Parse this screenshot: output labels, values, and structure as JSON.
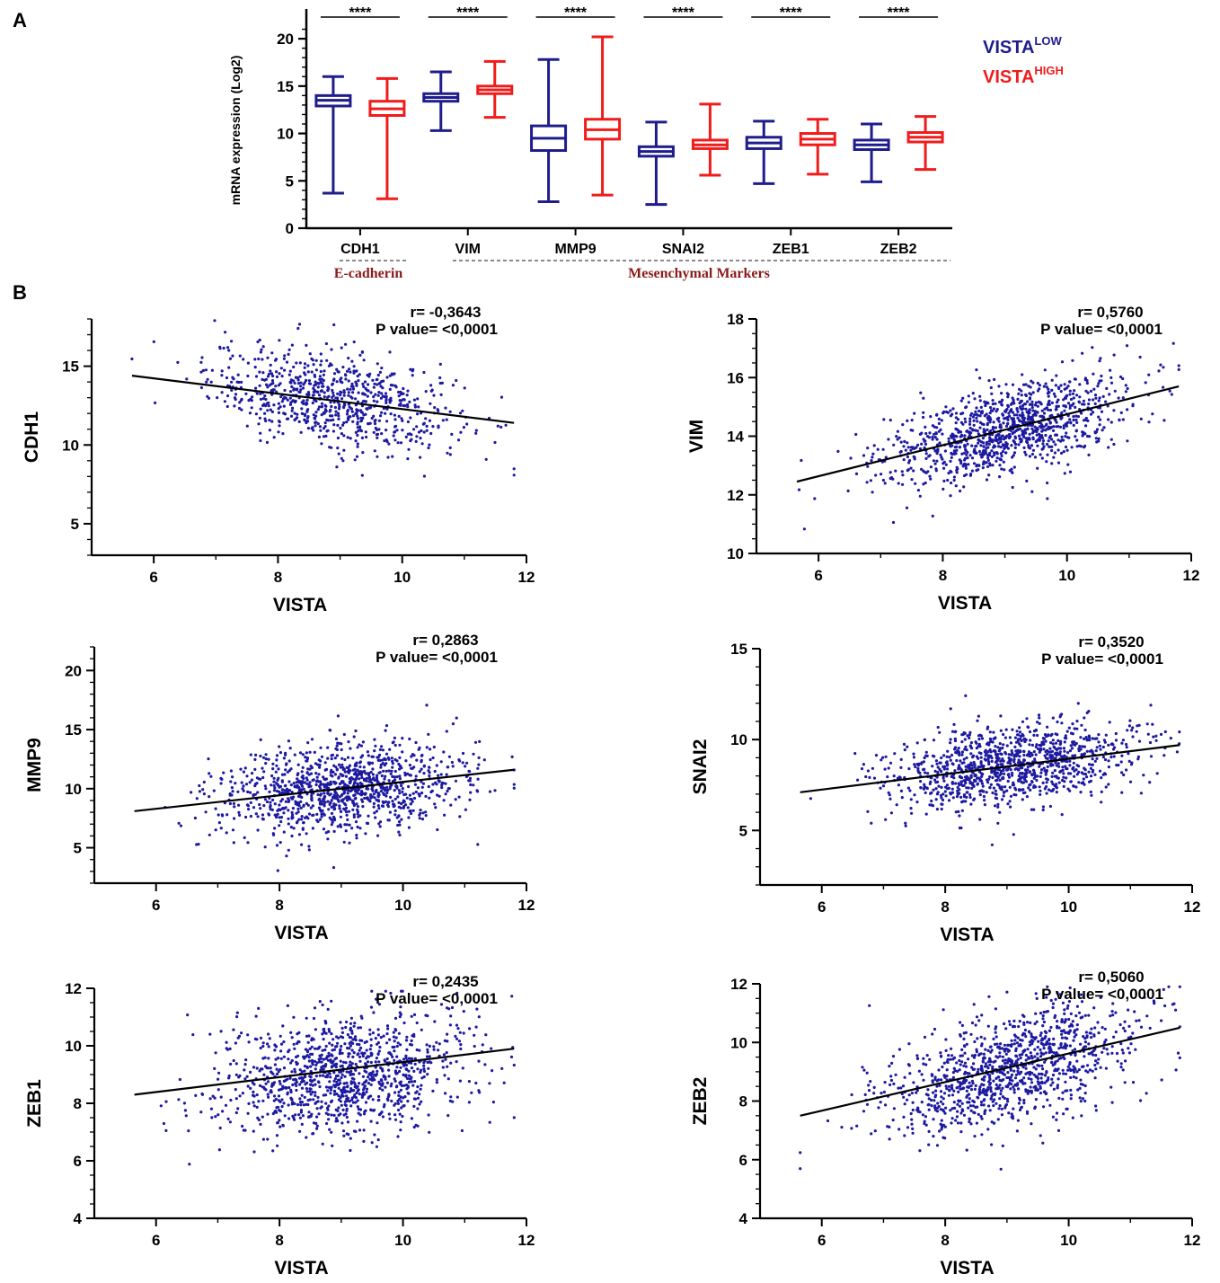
{
  "panel_labels": {
    "a": "A",
    "b": "B"
  },
  "colors": {
    "low": "#1f1d8c",
    "high": "#f01c1c",
    "dot": "#1d1aa0",
    "line": "#000000",
    "group_label": "#8b1a1a"
  },
  "legend": {
    "low_main": "VISTA",
    "low_sup": "LOW",
    "high_main": "VISTA",
    "high_sup": "HIGH"
  },
  "groups": {
    "ecadherin": "E-cadherin",
    "mesenchymal": "Mesenchymal Markers"
  },
  "chart_data": [
    {
      "id": "boxplot",
      "type": "box",
      "ylabel": "mRNA expression (Log2)",
      "ylim": [
        0,
        22
      ],
      "yticks": [
        0,
        5,
        10,
        15,
        20
      ],
      "categories": [
        "CDH1",
        "VIM",
        "MMP9",
        "SNAI2",
        "ZEB1",
        "ZEB2"
      ],
      "significance": [
        "****",
        "****",
        "****",
        "****",
        "****",
        "****"
      ],
      "series": [
        {
          "name": "VISTA LOW",
          "boxes": [
            {
              "min": 3.7,
              "q1": 12.9,
              "median": 13.5,
              "q3": 14.0,
              "max": 16.0
            },
            {
              "min": 10.3,
              "q1": 13.4,
              "median": 13.8,
              "q3": 14.2,
              "max": 16.5
            },
            {
              "min": 2.8,
              "q1": 8.2,
              "median": 9.5,
              "q3": 10.8,
              "max": 17.8
            },
            {
              "min": 2.5,
              "q1": 7.6,
              "median": 8.1,
              "q3": 8.6,
              "max": 11.2
            },
            {
              "min": 4.7,
              "q1": 8.4,
              "median": 9.0,
              "q3": 9.6,
              "max": 11.3
            },
            {
              "min": 4.9,
              "q1": 8.3,
              "median": 8.8,
              "q3": 9.3,
              "max": 11.0
            }
          ]
        },
        {
          "name": "VISTA HIGH",
          "boxes": [
            {
              "min": 3.1,
              "q1": 11.9,
              "median": 12.6,
              "q3": 13.4,
              "max": 15.8
            },
            {
              "min": 11.7,
              "q1": 14.2,
              "median": 14.6,
              "q3": 15.0,
              "max": 17.6
            },
            {
              "min": 3.5,
              "q1": 9.4,
              "median": 10.4,
              "q3": 11.5,
              "max": 20.2
            },
            {
              "min": 5.6,
              "q1": 8.4,
              "median": 8.8,
              "q3": 9.3,
              "max": 13.1
            },
            {
              "min": 5.7,
              "q1": 8.8,
              "median": 9.4,
              "q3": 10.0,
              "max": 11.5
            },
            {
              "min": 6.2,
              "q1": 9.1,
              "median": 9.6,
              "q3": 10.1,
              "max": 11.8
            }
          ]
        }
      ]
    },
    {
      "id": "cdh1",
      "type": "scatter",
      "xlabel": "VISTA",
      "ylabel": "CDH1",
      "xlim": [
        5,
        12
      ],
      "xticks": [
        6,
        8,
        10,
        12
      ],
      "ylim": [
        3,
        18
      ],
      "yticks": [
        5,
        10,
        15
      ],
      "r": "r= -0,3643",
      "p": "P value= <0,0001",
      "fit": {
        "x0": 5.65,
        "y0": 14.4,
        "x1": 11.8,
        "y1": 11.4
      },
      "cloud": {
        "n": 780,
        "xmean": 8.9,
        "xsd": 1.0,
        "ymean": 12.9,
        "ysd": 1.6,
        "rho": -0.36
      }
    },
    {
      "id": "vim",
      "type": "scatter",
      "xlabel": "VISTA",
      "ylabel": "VIM",
      "xlim": [
        5,
        12
      ],
      "xticks": [
        6,
        8,
        10,
        12
      ],
      "ylim": [
        10,
        18
      ],
      "yticks": [
        10,
        12,
        14,
        16,
        18
      ],
      "r": "r= 0,5760",
      "p": "P value= <0,0001",
      "fit": {
        "x0": 5.65,
        "y0": 12.45,
        "x1": 11.8,
        "y1": 15.7
      },
      "cloud": {
        "n": 1100,
        "xmean": 9.0,
        "xsd": 1.0,
        "ymean": 14.2,
        "ysd": 0.9,
        "rho": 0.58
      }
    },
    {
      "id": "mmp9",
      "type": "scatter",
      "xlabel": "VISTA",
      "ylabel": "MMP9",
      "xlim": [
        5,
        12
      ],
      "xticks": [
        6,
        8,
        10,
        12
      ],
      "ylim": [
        2,
        22
      ],
      "yticks": [
        5,
        10,
        15,
        20
      ],
      "r": "r= 0,2863",
      "p": "P value= <0,0001",
      "fit": {
        "x0": 5.65,
        "y0": 8.1,
        "x1": 11.8,
        "y1": 11.6
      },
      "cloud": {
        "n": 1100,
        "xmean": 9.0,
        "xsd": 1.0,
        "ymean": 10.0,
        "ysd": 2.0,
        "rho": 0.29
      }
    },
    {
      "id": "snai2",
      "type": "scatter",
      "xlabel": "VISTA",
      "ylabel": "SNAI2",
      "xlim": [
        5,
        12
      ],
      "xticks": [
        6,
        8,
        10,
        12
      ],
      "ylim": [
        2,
        15
      ],
      "yticks": [
        5,
        10,
        15
      ],
      "r": "r= 0,3520",
      "p": "P value= <0,0001",
      "fit": {
        "x0": 5.65,
        "y0": 7.1,
        "x1": 11.8,
        "y1": 9.7
      },
      "cloud": {
        "n": 1100,
        "xmean": 9.0,
        "xsd": 1.0,
        "ymean": 8.5,
        "ysd": 1.2,
        "rho": 0.35
      }
    },
    {
      "id": "zeb1",
      "type": "scatter",
      "xlabel": "VISTA",
      "ylabel": "ZEB1",
      "xlim": [
        5,
        12
      ],
      "xticks": [
        6,
        8,
        10,
        12
      ],
      "ylim": [
        4,
        12
      ],
      "yticks": [
        4,
        6,
        8,
        10,
        12
      ],
      "r": "r= 0,2435",
      "p": "P value= <0,0001",
      "fit": {
        "x0": 5.65,
        "y0": 8.3,
        "x1": 11.8,
        "y1": 9.9
      },
      "cloud": {
        "n": 1100,
        "xmean": 9.0,
        "xsd": 1.0,
        "ymean": 9.0,
        "ysd": 1.1,
        "rho": 0.24
      }
    },
    {
      "id": "zeb2",
      "type": "scatter",
      "xlabel": "VISTA",
      "ylabel": "ZEB2",
      "xlim": [
        5,
        12
      ],
      "xticks": [
        6,
        8,
        10,
        12
      ],
      "ylim": [
        4,
        12
      ],
      "yticks": [
        4,
        6,
        8,
        10,
        12
      ],
      "r": "r= 0,5060",
      "p": "P value= <0,0001",
      "fit": {
        "x0": 5.65,
        "y0": 7.5,
        "x1": 11.8,
        "y1": 10.5
      },
      "cloud": {
        "n": 1100,
        "xmean": 9.0,
        "xsd": 1.0,
        "ymean": 9.1,
        "ysd": 1.1,
        "rho": 0.51
      }
    }
  ]
}
